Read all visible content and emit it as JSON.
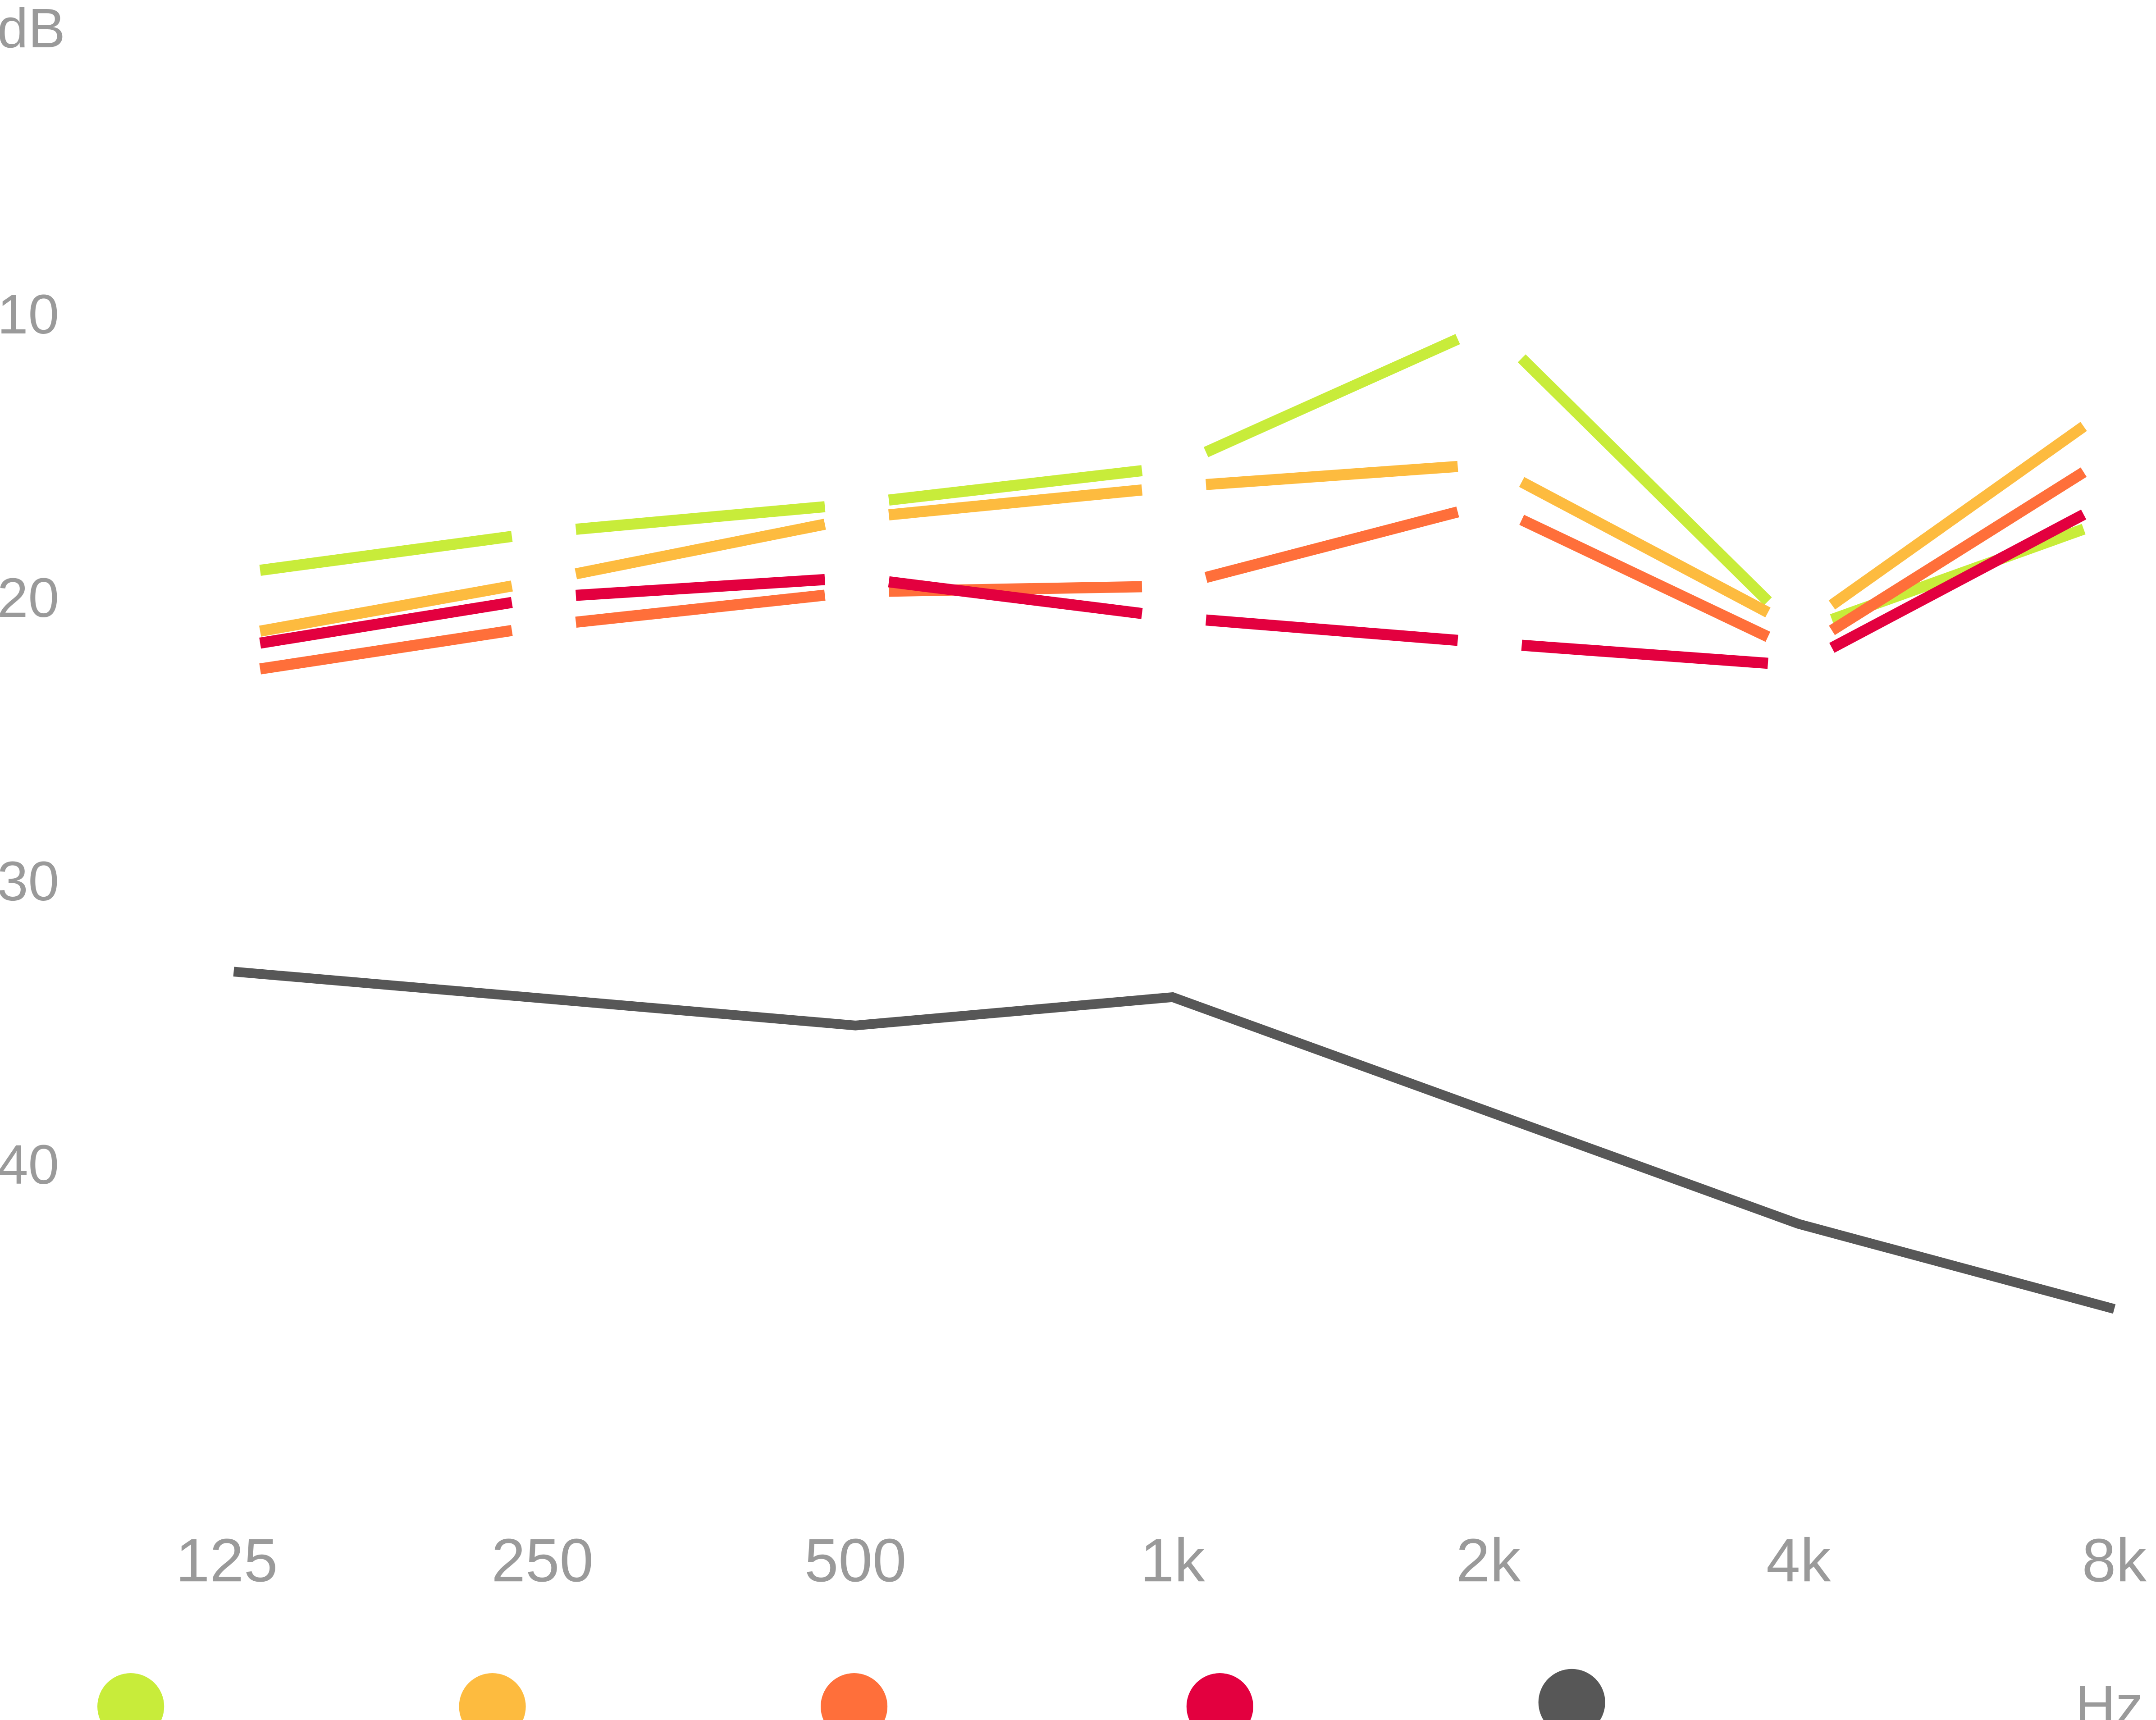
{
  "chart_data": {
    "type": "line",
    "title": "",
    "ylabel": "dB",
    "xlabel": "Hz",
    "categories": [
      "125",
      "250",
      "500",
      "1k",
      "2k",
      "4k",
      "8k"
    ],
    "ylim": [
      0,
      50
    ],
    "y_inverted": true,
    "y_ticks": [
      "10",
      "20",
      "30",
      "40"
    ],
    "gridlines": [
      0,
      10
    ],
    "legend_placement": "bottom",
    "series": [
      {
        "color": "#C8EC3A",
        "values": [
          19.2,
          17.7,
          16.7,
          15.4,
          10.4,
          21.2,
          17.2
        ]
      },
      {
        "color": "#FDBB3F",
        "values": [
          21.4,
          19.4,
          17.2,
          16.1,
          15.3,
          21.1,
          13.2
        ]
      },
      {
        "color": "#FF6F3A",
        "values": [
          22.7,
          21.0,
          19.8,
          19.6,
          16.7,
          21.9,
          14.9
        ]
      },
      {
        "color": "#E3003F",
        "values": [
          21.8,
          20.0,
          19.3,
          20.7,
          21.6,
          22.4,
          16.5
        ]
      },
      {
        "color": "#575757",
        "values": [
          33.2,
          34.2,
          35.1,
          34.1,
          38.1,
          42.1,
          45.1
        ]
      }
    ]
  }
}
